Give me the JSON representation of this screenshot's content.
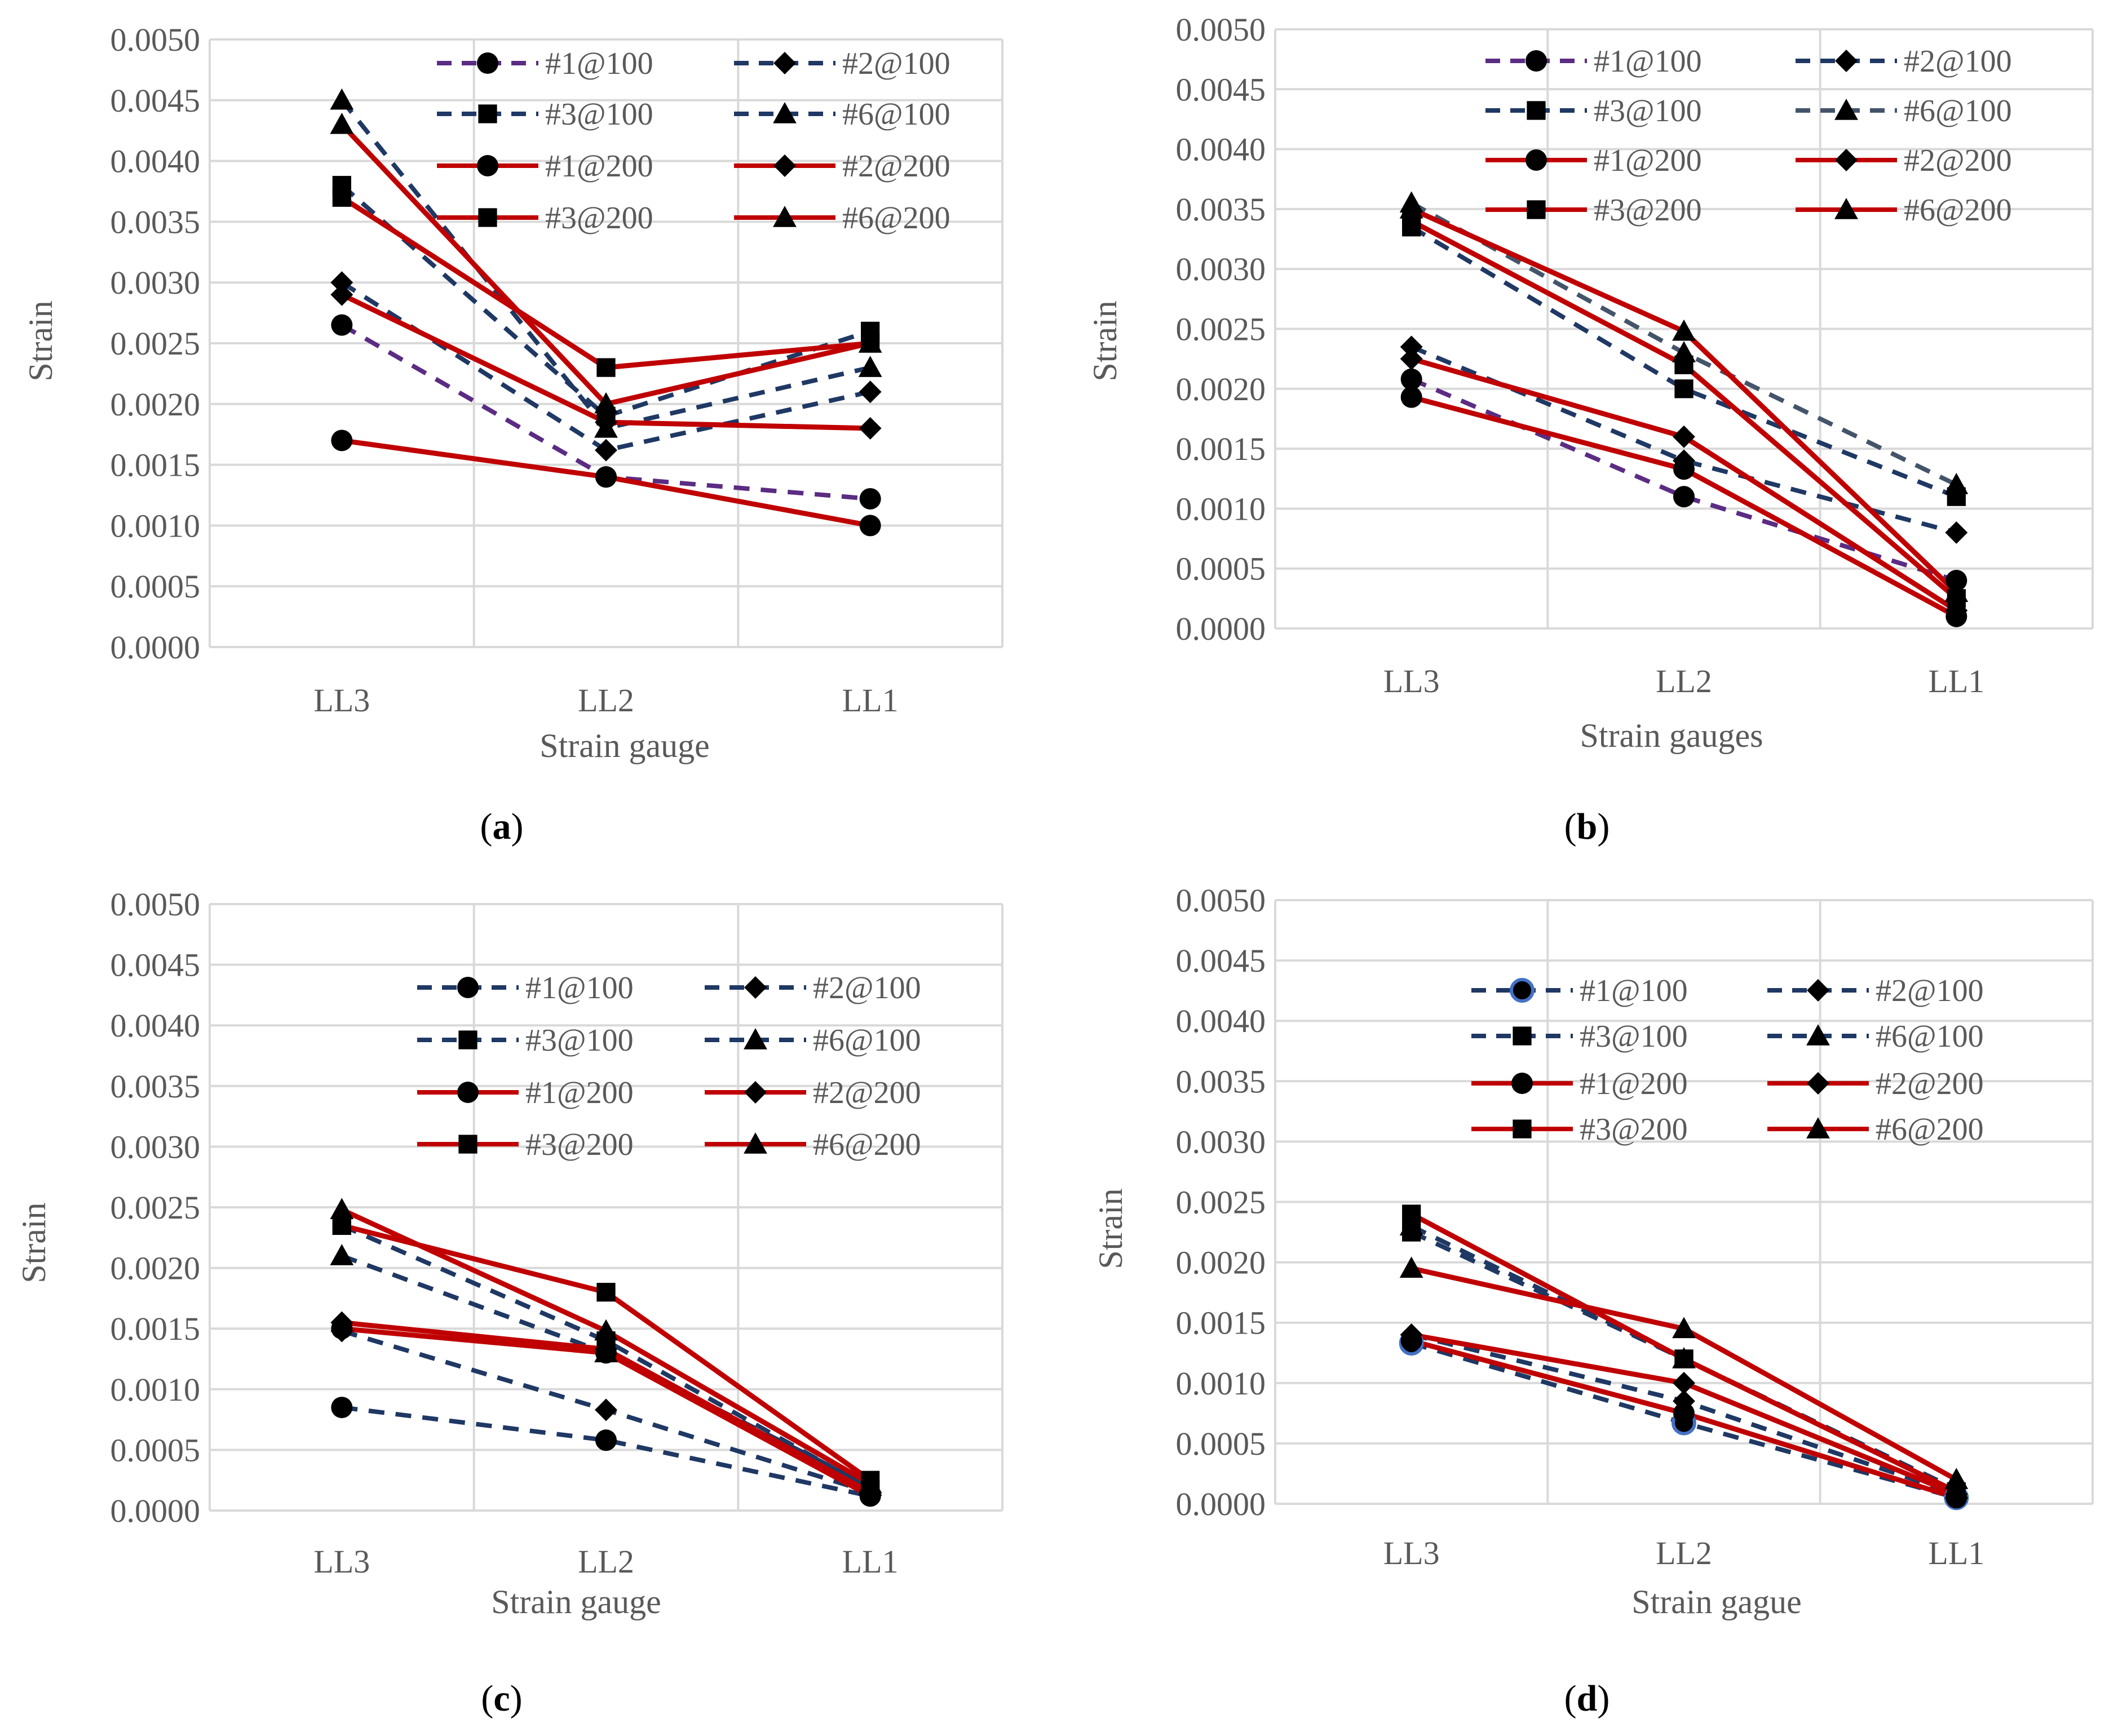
{
  "colors": {
    "dashed_b": "#1F3864",
    "dashed_a_s1": "#5B2C83",
    "dashed_b_s4": "#44546A",
    "solid": "#C00000",
    "grid": "#D9D9D9",
    "marker": "#000000"
  },
  "chart_data": [
    {
      "type": "line",
      "panel_label": "a",
      "title": "",
      "xlabel": "Strain gauge",
      "ylabel": "Strain",
      "categories": [
        "LL3",
        "LL2",
        "LL1"
      ],
      "ylim": [
        0,
        0.005
      ],
      "yticks": [
        "0.0000",
        "0.0005",
        "0.0010",
        "0.0015",
        "0.0020",
        "0.0025",
        "0.0030",
        "0.0035",
        "0.0040",
        "0.0045",
        "0.0050"
      ],
      "grid": true,
      "legend_position": "top-right",
      "series": [
        {
          "name": "#1@100",
          "style": "dashed",
          "marker": "circle",
          "values": [
            0.00265,
            0.0014,
            0.00122
          ]
        },
        {
          "name": "#2@100",
          "style": "dashed",
          "marker": "diamond",
          "values": [
            0.003,
            0.00162,
            0.0021
          ]
        },
        {
          "name": "#3@100",
          "style": "dashed",
          "marker": "square",
          "values": [
            0.0038,
            0.0019,
            0.0026
          ]
        },
        {
          "name": "#6@100",
          "style": "dashed",
          "marker": "triangle",
          "values": [
            0.0045,
            0.0018,
            0.0023
          ]
        },
        {
          "name": "#1@200",
          "style": "solid",
          "marker": "circle",
          "values": [
            0.0017,
            0.0014,
            0.001
          ]
        },
        {
          "name": "#2@200",
          "style": "solid",
          "marker": "diamond",
          "values": [
            0.0029,
            0.00185,
            0.0018
          ]
        },
        {
          "name": "#3@200",
          "style": "solid",
          "marker": "square",
          "values": [
            0.0037,
            0.0023,
            0.0025
          ]
        },
        {
          "name": "#6@200",
          "style": "solid",
          "marker": "triangle",
          "values": [
            0.0043,
            0.002,
            0.0025
          ]
        }
      ]
    },
    {
      "type": "line",
      "panel_label": "b",
      "title": "",
      "xlabel": "Strain gauges",
      "ylabel": "Strain",
      "categories": [
        "LL3",
        "LL2",
        "LL1"
      ],
      "ylim": [
        0,
        0.005
      ],
      "yticks": [
        "0.0000",
        "0.0005",
        "0.0010",
        "0.0015",
        "0.0020",
        "0.0025",
        "0.0030",
        "0.0035",
        "0.0040",
        "0.0045",
        "0.0050"
      ],
      "grid": true,
      "legend_position": "top-right",
      "series": [
        {
          "name": "#1@100",
          "style": "dashed",
          "marker": "circle",
          "values": [
            0.00208,
            0.0011,
            0.0004
          ]
        },
        {
          "name": "#2@100",
          "style": "dashed",
          "marker": "diamond",
          "values": [
            0.00235,
            0.0014,
            0.0008
          ]
        },
        {
          "name": "#3@100",
          "style": "dashed",
          "marker": "square",
          "values": [
            0.00335,
            0.002,
            0.0011
          ]
        },
        {
          "name": "#6@100",
          "style": "dashed",
          "marker": "triangle",
          "values": [
            0.00355,
            0.0023,
            0.0012
          ]
        },
        {
          "name": "#1@200",
          "style": "solid",
          "marker": "circle",
          "values": [
            0.00193,
            0.00133,
            0.0001
          ]
        },
        {
          "name": "#2@200",
          "style": "solid",
          "marker": "diamond",
          "values": [
            0.00225,
            0.0016,
            0.00015
          ]
        },
        {
          "name": "#3@200",
          "style": "solid",
          "marker": "square",
          "values": [
            0.0034,
            0.0022,
            0.00025
          ]
        },
        {
          "name": "#6@200",
          "style": "solid",
          "marker": "triangle",
          "values": [
            0.0035,
            0.00248,
            0.0003
          ]
        }
      ]
    },
    {
      "type": "line",
      "panel_label": "c",
      "title": "",
      "xlabel": "Strain gauge",
      "ylabel": "Strain",
      "categories": [
        "LL3",
        "LL2",
        "LL1"
      ],
      "ylim": [
        0,
        0.005
      ],
      "yticks": [
        "0.0000",
        "0.0005",
        "0.0010",
        "0.0015",
        "0.0020",
        "0.0025",
        "0.0030",
        "0.0035",
        "0.0040",
        "0.0045",
        "0.0050"
      ],
      "grid": true,
      "legend_position": "top-right",
      "series": [
        {
          "name": "#1@100",
          "style": "dashed",
          "marker": "circle",
          "values": [
            0.00085,
            0.00058,
            0.00012
          ]
        },
        {
          "name": "#2@100",
          "style": "dashed",
          "marker": "diamond",
          "values": [
            0.00148,
            0.00083,
            0.00015
          ]
        },
        {
          "name": "#3@100",
          "style": "dashed",
          "marker": "square",
          "values": [
            0.00235,
            0.0014,
            0.00018
          ]
        },
        {
          "name": "#6@100",
          "style": "dashed",
          "marker": "triangle",
          "values": [
            0.0021,
            0.0013,
            0.0002
          ]
        },
        {
          "name": "#1@200",
          "style": "solid",
          "marker": "circle",
          "values": [
            0.0015,
            0.0013,
            0.00012
          ]
        },
        {
          "name": "#2@200",
          "style": "solid",
          "marker": "diamond",
          "values": [
            0.00155,
            0.00133,
            0.00015
          ]
        },
        {
          "name": "#3@200",
          "style": "solid",
          "marker": "square",
          "values": [
            0.00235,
            0.0018,
            0.00025
          ]
        },
        {
          "name": "#6@200",
          "style": "solid",
          "marker": "triangle",
          "values": [
            0.00248,
            0.00148,
            0.00022
          ]
        }
      ]
    },
    {
      "type": "line",
      "panel_label": "d",
      "title": "",
      "xlabel": "Strain gague",
      "ylabel": "Strain",
      "categories": [
        "LL3",
        "LL2",
        "LL1"
      ],
      "ylim": [
        0,
        0.005
      ],
      "yticks": [
        "0.0000",
        "0.0005",
        "0.0010",
        "0.0015",
        "0.0020",
        "0.0025",
        "0.0030",
        "0.0035",
        "0.0040",
        "0.0045",
        "0.0050"
      ],
      "grid": true,
      "legend_position": "top-right",
      "series": [
        {
          "name": "#1@100",
          "style": "dashed",
          "marker": "circle-open-blue",
          "values": [
            0.00133,
            0.00067,
            5e-05
          ]
        },
        {
          "name": "#2@100",
          "style": "dashed",
          "marker": "diamond",
          "values": [
            0.0014,
            0.00085,
            8e-05
          ]
        },
        {
          "name": "#3@100",
          "style": "dashed",
          "marker": "square",
          "values": [
            0.00225,
            0.0012,
            0.0001
          ]
        },
        {
          "name": "#6@100",
          "style": "dashed",
          "marker": "triangle",
          "values": [
            0.0023,
            0.0012,
            0.00012
          ]
        },
        {
          "name": "#1@200",
          "style": "solid",
          "marker": "circle",
          "values": [
            0.00135,
            0.00075,
            5e-05
          ]
        },
        {
          "name": "#2@200",
          "style": "solid",
          "marker": "diamond",
          "values": [
            0.0014,
            0.001,
            8e-05
          ]
        },
        {
          "name": "#3@200",
          "style": "solid",
          "marker": "square",
          "values": [
            0.0024,
            0.0012,
            0.0001
          ]
        },
        {
          "name": "#6@200",
          "style": "solid",
          "marker": "triangle",
          "values": [
            0.00195,
            0.00145,
            0.0002
          ]
        }
      ]
    }
  ]
}
